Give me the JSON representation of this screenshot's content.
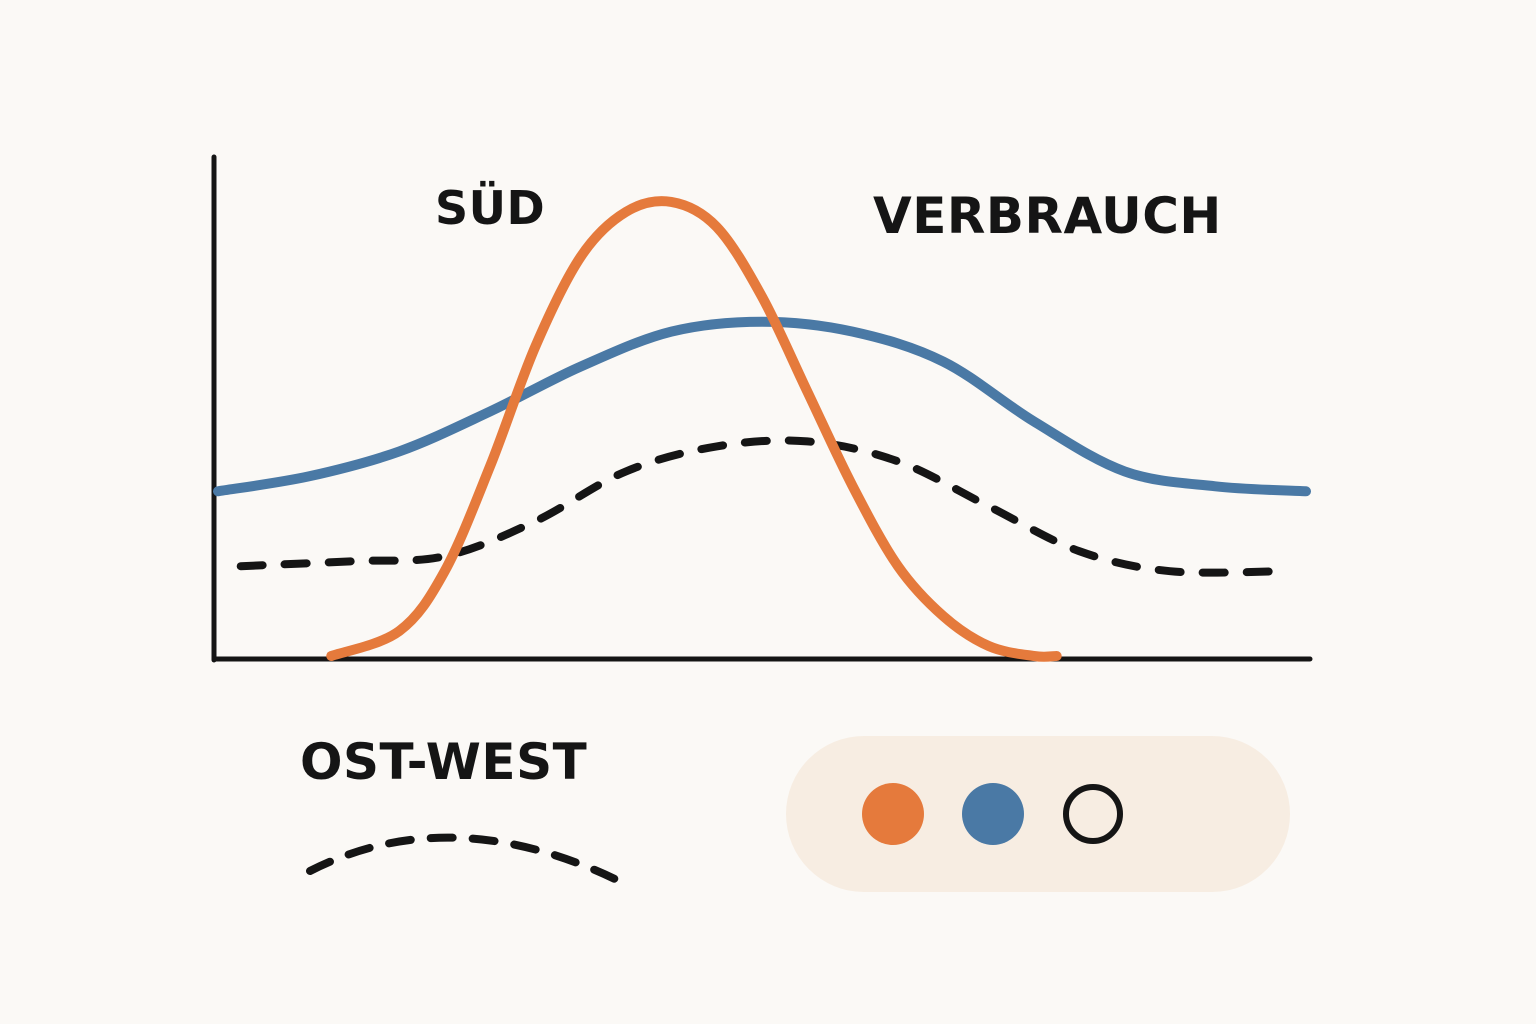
{
  "chart_data": {
    "type": "line",
    "title": "",
    "xlabel": "",
    "ylabel": "",
    "grid": false,
    "xlim": [
      0,
      24
    ],
    "ylim": [
      0,
      100
    ],
    "series": [
      {
        "name": "SÜD",
        "color": "#e57a3c",
        "style": "solid",
        "x": [
          2.5,
          4,
          5,
          6,
          7,
          8,
          9,
          10,
          11,
          12,
          13,
          14,
          15,
          16,
          17,
          18,
          18.5
        ],
        "y": [
          0,
          5,
          17,
          38,
          62,
          80,
          89,
          91,
          86,
          72,
          53,
          34,
          18,
          8,
          2,
          0,
          0
        ]
      },
      {
        "name": "VERBRAUCH",
        "color": "#4a79a5",
        "style": "solid",
        "x": [
          0,
          2,
          4,
          6,
          8,
          10,
          12,
          14,
          16,
          18,
          20,
          22,
          24
        ],
        "y": [
          33,
          36,
          41,
          49,
          58,
          65,
          67,
          65,
          59,
          47,
          37,
          34,
          33
        ]
      },
      {
        "name": "OST-WEST",
        "color": "#151515",
        "style": "dashed",
        "x": [
          0.5,
          3,
          5,
          7,
          9,
          11,
          13,
          15,
          17,
          19,
          21,
          23.5
        ],
        "y": [
          18,
          19,
          20,
          27,
          37,
          42,
          43,
          39,
          30,
          21,
          17,
          17
        ]
      }
    ]
  },
  "labels": {
    "south": "SÜD",
    "consumption": "VERBRAUCH",
    "east_west": "OST-WEST"
  },
  "legend": {
    "background": "#f7ede2",
    "dots": [
      {
        "series": "SÜD",
        "fill": "#e57a3c"
      },
      {
        "series": "VERBRAUCH",
        "fill": "#4a79a5"
      },
      {
        "series": "OST-WEST",
        "fill": "none"
      }
    ]
  }
}
